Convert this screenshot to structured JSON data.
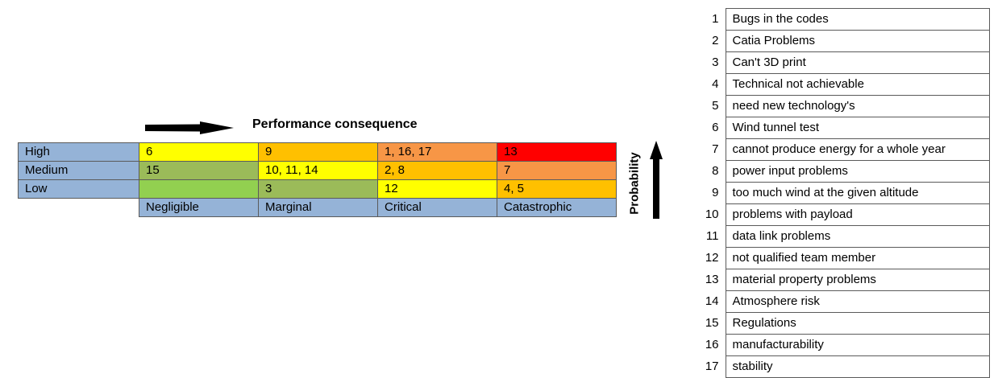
{
  "matrix": {
    "title": "Performance consequence",
    "probability_label": "Probability",
    "rows": [
      {
        "label": "High",
        "cells": [
          {
            "text": "6",
            "color": "#ffff00"
          },
          {
            "text": "9",
            "color": "#ffc000"
          },
          {
            "text": "1, 16, 17",
            "color": "#f79646"
          },
          {
            "text": "13",
            "color": "#ff0000"
          }
        ]
      },
      {
        "label": "Medium",
        "cells": [
          {
            "text": "15",
            "color": "#9bbb59"
          },
          {
            "text": "10, 11, 14",
            "color": "#ffff00"
          },
          {
            "text": "2, 8",
            "color": "#ffc000"
          },
          {
            "text": "7",
            "color": "#f79646"
          }
        ]
      },
      {
        "label": "Low",
        "cells": [
          {
            "text": "",
            "color": "#92d050"
          },
          {
            "text": "3",
            "color": "#9bbb59"
          },
          {
            "text": "12",
            "color": "#ffff00"
          },
          {
            "text": "4, 5",
            "color": "#ffc000"
          }
        ]
      }
    ],
    "columns": [
      "Negligible",
      "Marginal",
      "Critical",
      "Catastrophic"
    ],
    "header_color": "#95b3d7"
  },
  "risks": [
    {
      "number": "1",
      "text": "Bugs in the codes"
    },
    {
      "number": "2",
      "text": "Catia Problems"
    },
    {
      "number": "3",
      "text": "Can't 3D print"
    },
    {
      "number": "4",
      "text": "Technical not achievable"
    },
    {
      "number": "5",
      "text": "need new technology's"
    },
    {
      "number": "6",
      "text": "Wind tunnel test"
    },
    {
      "number": "7",
      "text": "cannot produce energy for a whole year"
    },
    {
      "number": "8",
      "text": "power input problems"
    },
    {
      "number": "9",
      "text": "too much wind at the given altitude"
    },
    {
      "number": "10",
      "text": "problems with payload"
    },
    {
      "number": "11",
      "text": "data link problems"
    },
    {
      "number": "12",
      "text": "not qualified team member"
    },
    {
      "number": "13",
      "text": "material property problems"
    },
    {
      "number": "14",
      "text": "Atmosphere risk"
    },
    {
      "number": "15",
      "text": "Regulations"
    },
    {
      "number": "16",
      "text": "manufacturability"
    },
    {
      "number": "17",
      "text": "stability"
    }
  ],
  "chart_data": {
    "type": "table",
    "title": "Performance consequence",
    "xlabel": "",
    "ylabel": "Probability",
    "columns": [
      "Negligible",
      "Marginal",
      "Critical",
      "Catastrophic"
    ],
    "rows": [
      "High",
      "Medium",
      "Low"
    ],
    "values": [
      [
        "6",
        "9",
        "1, 16, 17",
        "13"
      ],
      [
        "15",
        "10, 11, 14",
        "2, 8",
        "7"
      ],
      [
        "",
        "3",
        "12",
        "4, 5"
      ]
    ]
  }
}
